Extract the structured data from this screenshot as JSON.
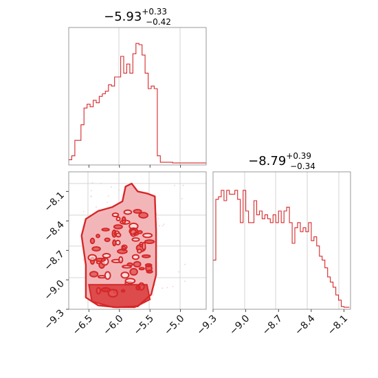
{
  "chart_data": [
    {
      "type": "histogram",
      "panel": "top-left",
      "title": {
        "median": "−5.93",
        "plus": "+0.33",
        "minus": "−0.42"
      },
      "xlim": [
        -6.83,
        -4.58
      ],
      "x_ticks": [
        -6.5,
        -6.0,
        -5.5,
        -5.0
      ],
      "bins": {
        "edges_start": -6.83,
        "bin_width": 0.05,
        "counts": [
          0.03,
          0.06,
          0.18,
          0.18,
          0.3,
          0.43,
          0.46,
          0.44,
          0.49,
          0.47,
          0.52,
          0.54,
          0.56,
          0.61,
          0.6,
          0.67,
          0.67,
          0.83,
          0.7,
          0.77,
          0.7,
          0.85,
          0.93,
          0.92,
          0.84,
          0.7,
          0.58,
          0.6,
          0.58,
          0.06,
          0.01,
          0.01,
          0.01,
          0.01,
          0.005,
          0.005,
          0.005,
          0.005,
          0.005,
          0.005,
          0.005,
          0.005,
          0.005,
          0.005,
          0.005
        ]
      },
      "ylim": [
        0,
        1.0
      ]
    },
    {
      "type": "scatter",
      "subtype": "2d-contour-density",
      "panel": "bottom-left",
      "xlim": [
        -6.83,
        -4.58
      ],
      "ylim": [
        -9.3,
        -7.9
      ],
      "x_ticks": [
        -6.5,
        -6.0,
        -5.5,
        -5.0
      ],
      "y_ticks": [
        -8.1,
        -8.4,
        -8.7,
        -9.0,
        -9.3
      ],
      "region_outline": [
        [
          -6.55,
          -9.18
        ],
        [
          -6.55,
          -8.85
        ],
        [
          -6.62,
          -8.55
        ],
        [
          -6.55,
          -8.38
        ],
        [
          -6.35,
          -8.3
        ],
        [
          -6.12,
          -8.26
        ],
        [
          -5.95,
          -8.2
        ],
        [
          -5.9,
          -8.05
        ],
        [
          -5.8,
          -8.02
        ],
        [
          -5.7,
          -8.1
        ],
        [
          -5.55,
          -8.12
        ],
        [
          -5.42,
          -8.15
        ],
        [
          -5.4,
          -8.5
        ],
        [
          -5.4,
          -8.95
        ],
        [
          -5.48,
          -9.15
        ],
        [
          -5.7,
          -9.27
        ],
        [
          -6.05,
          -9.28
        ],
        [
          -6.35,
          -9.26
        ]
      ]
    },
    {
      "type": "histogram",
      "panel": "bottom-right",
      "title": {
        "median": "−8.79",
        "plus": "+0.39",
        "minus": "−0.34"
      },
      "xlim": [
        -9.3,
        -8.04
      ],
      "x_ticks": [
        -9.3,
        -9.0,
        -8.7,
        -8.4,
        -8.1
      ],
      "bins": {
        "edges_start": -9.3,
        "bin_width": 0.025,
        "counts": [
          0.37,
          0.84,
          0.86,
          0.91,
          0.83,
          0.91,
          0.88,
          0.88,
          0.91,
          0.84,
          0.66,
          0.91,
          0.75,
          0.66,
          0.66,
          0.83,
          0.72,
          0.75,
          0.69,
          0.72,
          0.69,
          0.66,
          0.72,
          0.66,
          0.75,
          0.66,
          0.75,
          0.78,
          0.66,
          0.5,
          0.62,
          0.66,
          0.59,
          0.62,
          0.59,
          0.66,
          0.52,
          0.55,
          0.48,
          0.4,
          0.37,
          0.31,
          0.24,
          0.2,
          0.16,
          0.1,
          0.06,
          0.01,
          0.005,
          0.005
        ]
      },
      "ylim": [
        0,
        1.0
      ]
    }
  ],
  "colors": {
    "series": "#d62728",
    "series_light": "#f2b6b9"
  }
}
